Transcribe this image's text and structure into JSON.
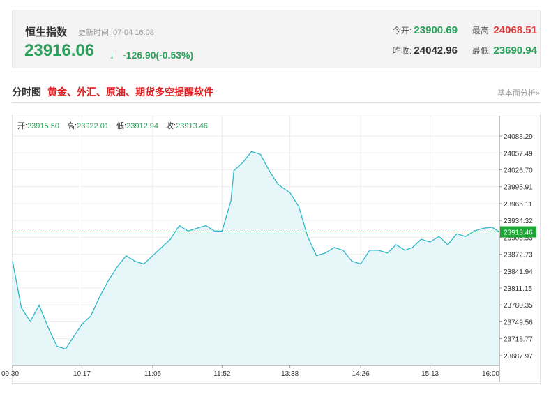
{
  "quote": {
    "name": "恒生指数",
    "update_label": "更新时间:",
    "update_time": "07-04 16:08",
    "price": "23916.06",
    "arrow": "↓",
    "change": "-126.90(-0.53%)",
    "open_label": "今开:",
    "open": "23900.69",
    "high_label": "最高:",
    "high": "24068.51",
    "prev_close_label": "昨收:",
    "prev_close": "24042.96",
    "low_label": "最低:",
    "low": "23690.94"
  },
  "section": {
    "title": "分时图",
    "promo": "黄金、外汇、原油、期货多空提醒软件",
    "link": "基本面分析»"
  },
  "ohlc": {
    "open_label": "开:",
    "open": "23915.50",
    "high_label": "高:",
    "high": "23922.01",
    "low_label": "低:",
    "low": "23912.94",
    "close_label": "收:",
    "close": "23913.46"
  },
  "colors": {
    "line": "#2fb7c6",
    "fill": "#e6f6f9",
    "up": "#e23b3b",
    "down": "#2aa05a",
    "current_badge": "#1aa832"
  },
  "chart_data": {
    "type": "area",
    "title": "",
    "xlabel": "",
    "ylabel": "",
    "ylim": [
      23670,
      24110
    ],
    "y_ticks": [
      "24088.29",
      "24057.49",
      "24026.70",
      "23995.91",
      "23965.11",
      "23934.32",
      "23903.53",
      "23872.73",
      "23841.94",
      "23811.15",
      "23780.35",
      "23749.56",
      "23718.77",
      "23687.97"
    ],
    "x_ticks": [
      "09:30",
      "10:17",
      "11:05",
      "11:52",
      "13:38",
      "14:26",
      "15:13",
      "16:00"
    ],
    "current_value": 23913.46,
    "current_label": "23913.46",
    "grid": true,
    "series": [
      {
        "x": [
          "09:30",
          "09:36",
          "09:42",
          "09:48",
          "09:54",
          "10:00",
          "10:06",
          "10:12",
          "10:17",
          "10:23",
          "10:29",
          "10:35",
          "10:41",
          "10:47",
          "10:53",
          "10:59",
          "11:05",
          "11:11",
          "11:17",
          "11:23",
          "11:29",
          "11:35",
          "11:41",
          "11:47",
          "11:52",
          "11:58",
          "13:00",
          "13:06",
          "13:12",
          "13:18",
          "13:24",
          "13:30",
          "13:38",
          "13:44",
          "13:50",
          "13:56",
          "14:02",
          "14:08",
          "14:14",
          "14:20",
          "14:26",
          "14:32",
          "14:38",
          "14:44",
          "14:50",
          "14:56",
          "15:01",
          "15:07",
          "15:13",
          "15:19",
          "15:25",
          "15:31",
          "15:37",
          "15:43",
          "15:49",
          "15:55",
          "16:00"
        ],
        "values": [
          23860,
          23775,
          23750,
          23780,
          23740,
          23705,
          23700,
          23725,
          23745,
          23760,
          23795,
          23825,
          23850,
          23870,
          23860,
          23855,
          23870,
          23885,
          23900,
          23925,
          23915,
          23920,
          23925,
          23915,
          23915,
          23970,
          24025,
          24040,
          24060,
          24055,
          24025,
          24000,
          23985,
          23960,
          23905,
          23870,
          23875,
          23885,
          23880,
          23860,
          23855,
          23880,
          23880,
          23875,
          23890,
          23880,
          23885,
          23900,
          23895,
          23905,
          23890,
          23910,
          23905,
          23915,
          23920,
          23922,
          23913.46
        ]
      }
    ]
  }
}
